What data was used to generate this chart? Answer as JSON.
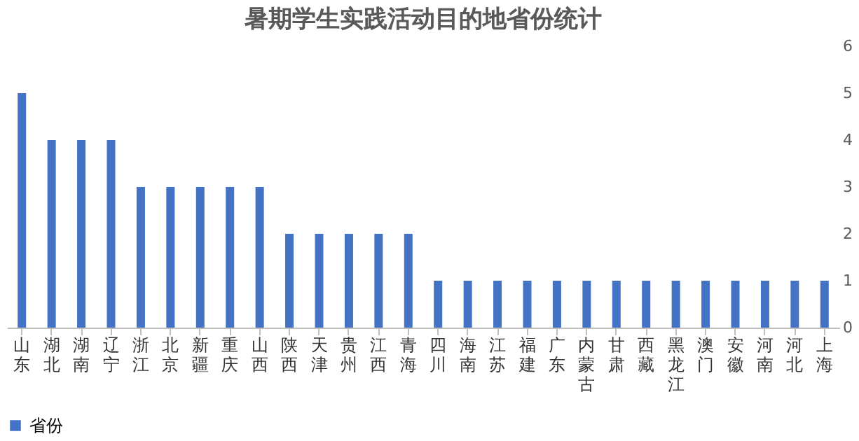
{
  "chart_data": {
    "type": "bar",
    "title": "暑期学生实践活动目的地省份统计",
    "categories": [
      "山东",
      "湖北",
      "湖南",
      "辽宁",
      "浙江",
      "北京",
      "新疆",
      "重庆",
      "山西",
      "陕西",
      "天津",
      "贵州",
      "江西",
      "青海",
      "四川",
      "海南",
      "江苏",
      "福建",
      "广东",
      "内蒙古",
      "甘肃",
      "西藏",
      "黑龙江",
      "澳门",
      "安徽",
      "河南",
      "河北",
      "上海"
    ],
    "series": [
      {
        "name": "省份",
        "color": "#4472c4",
        "values": [
          5,
          4,
          4,
          4,
          3,
          3,
          3,
          3,
          3,
          2,
          2,
          2,
          2,
          2,
          1,
          1,
          1,
          1,
          1,
          1,
          1,
          1,
          1,
          1,
          1,
          1,
          1,
          1
        ]
      }
    ],
    "ylim": [
      0,
      6
    ],
    "yticks": [
      0,
      1,
      2,
      3,
      4,
      5,
      6
    ],
    "grid": false,
    "legend": "bottom"
  }
}
